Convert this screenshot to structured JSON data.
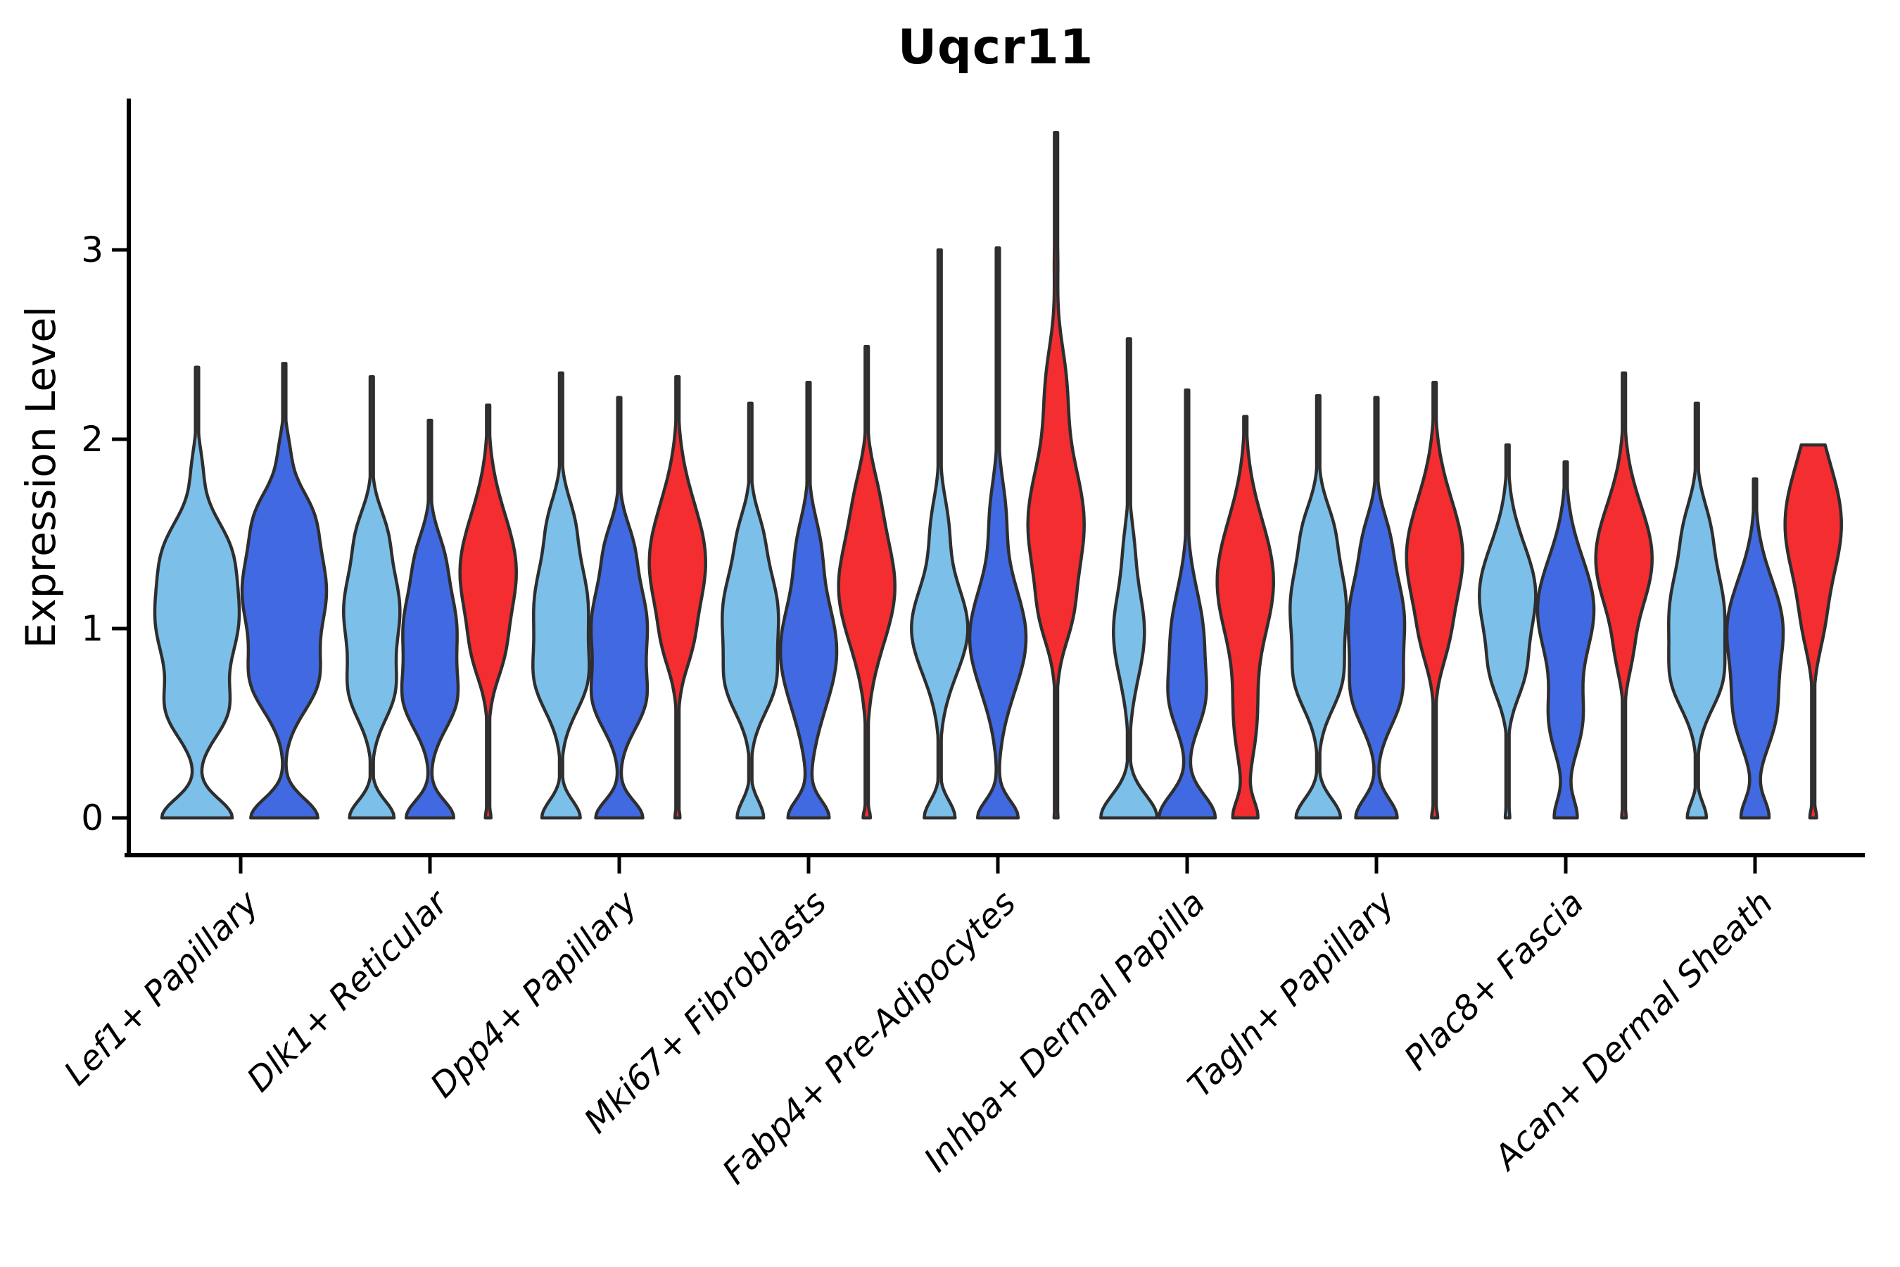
{
  "chart_data": {
    "type": "violin",
    "title": "Uqcr11",
    "ylabel": "Expression Level",
    "xlabel": "",
    "yticks": [
      0,
      1,
      2,
      3
    ],
    "ylim": [
      0,
      3.8
    ],
    "grid": false,
    "legend_position": "none",
    "palette": {
      "light_blue": "#7CC0EA",
      "dark_blue": "#4169E1",
      "red": "#F32D30"
    },
    "outline_color": "#2E2E2E",
    "categories": [
      "Lef1+ Papillary",
      "Dlk1+ Reticular",
      "Dpp4+ Papillary",
      "Mki67+ Fibroblasts",
      "Fabp4+ Pre-Adipocytes",
      "Inhba+ Dermal Papilla",
      "Tagln+ Papillary",
      "Plac8+ Fascia",
      "Acan+ Dermal Sheath"
    ],
    "groups": [
      {
        "label": "Lef1+ Papillary",
        "violins": [
          {
            "color": "light_blue",
            "max": 2.38,
            "kde": [
              [
                0,
                0.1,
                0.85
              ],
              [
                0.55,
                0.14,
                0.5
              ],
              [
                1.05,
                0.3,
                1.0
              ],
              [
                1.45,
                0.16,
                0.38
              ],
              [
                1.85,
                0.12,
                0.1
              ]
            ]
          },
          {
            "color": "dark_blue",
            "max": 2.4,
            "kde": [
              [
                0,
                0.1,
                0.8
              ],
              [
                0.7,
                0.16,
                0.55
              ],
              [
                1.2,
                0.3,
                1.0
              ],
              [
                1.62,
                0.14,
                0.32
              ],
              [
                1.95,
                0.1,
                0.08
              ]
            ]
          }
        ]
      },
      {
        "label": "Dlk1+ Reticular",
        "violins": [
          {
            "color": "light_blue",
            "max": 2.33,
            "kde": [
              [
                0,
                0.09,
                0.8
              ],
              [
                0.65,
                0.15,
                0.6
              ],
              [
                1.1,
                0.26,
                1.0
              ],
              [
                1.52,
                0.13,
                0.3
              ]
            ]
          },
          {
            "color": "dark_blue",
            "max": 2.1,
            "kde": [
              [
                0,
                0.09,
                0.9
              ],
              [
                0.6,
                0.15,
                0.72
              ],
              [
                1.0,
                0.25,
                1.0
              ],
              [
                1.4,
                0.13,
                0.28
              ]
            ]
          },
          {
            "color": "red",
            "max": 2.18,
            "kde": [
              [
                0,
                0.045,
                0.1
              ],
              [
                0.85,
                0.14,
                0.26
              ],
              [
                1.3,
                0.3,
                1.0
              ]
            ]
          }
        ]
      },
      {
        "label": "Dpp4+ Papillary",
        "violins": [
          {
            "color": "light_blue",
            "max": 2.35,
            "kde": [
              [
                0,
                0.09,
                0.72
              ],
              [
                0.7,
                0.16,
                0.65
              ],
              [
                1.12,
                0.28,
                1.0
              ],
              [
                1.58,
                0.13,
                0.26
              ]
            ]
          },
          {
            "color": "dark_blue",
            "max": 2.22,
            "kde": [
              [
                0,
                0.09,
                0.85
              ],
              [
                0.6,
                0.15,
                0.68
              ],
              [
                1.02,
                0.26,
                1.0
              ],
              [
                1.45,
                0.13,
                0.28
              ]
            ]
          },
          {
            "color": "red",
            "max": 2.33,
            "kde": [
              [
                0,
                0.045,
                0.09
              ],
              [
                0.9,
                0.13,
                0.2
              ],
              [
                1.35,
                0.31,
                1.0
              ]
            ]
          }
        ]
      },
      {
        "label": "Mki67+ Fibroblasts",
        "violins": [
          {
            "color": "light_blue",
            "max": 2.19,
            "kde": [
              [
                0,
                0.09,
                0.48
              ],
              [
                0.68,
                0.15,
                0.55
              ],
              [
                1.08,
                0.27,
                1.0
              ],
              [
                1.52,
                0.12,
                0.2
              ]
            ]
          },
          {
            "color": "dark_blue",
            "max": 2.3,
            "kde": [
              [
                0,
                0.09,
                0.72
              ],
              [
                0.88,
                0.3,
                1.0
              ],
              [
                1.45,
                0.16,
                0.28
              ]
            ]
          },
          {
            "color": "red",
            "max": 2.49,
            "kde": [
              [
                0,
                0.045,
                0.13
              ],
              [
                1.22,
                0.3,
                1.0
              ],
              [
                1.72,
                0.16,
                0.2
              ]
            ]
          }
        ]
      },
      {
        "label": "Fabp4+ Pre-Adipocytes",
        "violins": [
          {
            "color": "light_blue",
            "max": 3.0,
            "kde": [
              [
                0,
                0.09,
                0.55
              ],
              [
                1.0,
                0.24,
                1.0
              ],
              [
                1.55,
                0.16,
                0.26
              ],
              [
                2.1,
                0.14,
                0.05
              ]
            ]
          },
          {
            "color": "dark_blue",
            "max": 3.01,
            "kde": [
              [
                0,
                0.09,
                0.72
              ],
              [
                0.95,
                0.28,
                1.0
              ],
              [
                1.62,
                0.18,
                0.24
              ],
              [
                2.25,
                0.14,
                0.04
              ]
            ]
          },
          {
            "color": "red",
            "max": 3.62,
            "kde": [
              [
                0,
                0.04,
                0.07
              ],
              [
                1.05,
                0.15,
                0.26
              ],
              [
                1.55,
                0.34,
                1.0
              ],
              [
                2.3,
                0.22,
                0.3
              ],
              [
                2.95,
                0.16,
                0.06
              ]
            ]
          }
        ]
      },
      {
        "label": "Inhba+ Dermal Papilla",
        "violins": [
          {
            "color": "light_blue",
            "max": 2.53,
            "kde": [
              [
                0,
                0.12,
                1.0
              ],
              [
                0.98,
                0.24,
                0.55
              ],
              [
                1.45,
                0.14,
                0.12
              ]
            ]
          },
          {
            "color": "dark_blue",
            "max": 2.26,
            "kde": [
              [
                0,
                0.12,
                1.0
              ],
              [
                0.6,
                0.15,
                0.42
              ],
              [
                0.95,
                0.25,
                0.58
              ]
            ]
          },
          {
            "color": "red",
            "max": 2.12,
            "kde": [
              [
                0,
                0.09,
                0.42
              ],
              [
                0.5,
                0.22,
                0.35
              ],
              [
                1.25,
                0.32,
                1.0
              ]
            ]
          }
        ]
      },
      {
        "label": "Tagln+ Papillary",
        "violins": [
          {
            "color": "light_blue",
            "max": 2.23,
            "kde": [
              [
                0,
                0.1,
                0.8
              ],
              [
                0.7,
                0.15,
                0.52
              ],
              [
                1.12,
                0.28,
                1.0
              ],
              [
                1.55,
                0.13,
                0.26
              ]
            ]
          },
          {
            "color": "dark_blue",
            "max": 2.22,
            "kde": [
              [
                0,
                0.1,
                0.75
              ],
              [
                0.62,
                0.16,
                0.58
              ],
              [
                1.05,
                0.28,
                1.0
              ],
              [
                1.5,
                0.13,
                0.22
              ]
            ]
          },
          {
            "color": "red",
            "max": 2.3,
            "kde": [
              [
                0,
                0.045,
                0.11
              ],
              [
                0.92,
                0.14,
                0.2
              ],
              [
                1.38,
                0.3,
                1.0
              ]
            ]
          }
        ]
      },
      {
        "label": "Plac8+ Fascia",
        "violins": [
          {
            "color": "light_blue",
            "max": 1.97,
            "kde": [
              [
                0,
                0.05,
                0.08
              ],
              [
                0.75,
                0.14,
                0.38
              ],
              [
                1.18,
                0.26,
                1.0
              ]
            ]
          },
          {
            "color": "dark_blue",
            "max": 1.88,
            "kde": [
              [
                0,
                0.1,
                0.4
              ],
              [
                0.5,
                0.18,
                0.52
              ],
              [
                1.1,
                0.27,
                1.0
              ]
            ]
          },
          {
            "color": "red",
            "max": 2.35,
            "kde": [
              [
                0,
                0.045,
                0.08
              ],
              [
                0.85,
                0.12,
                0.14
              ],
              [
                1.37,
                0.28,
                1.0
              ]
            ]
          }
        ]
      },
      {
        "label": "Acan+ Dermal Sheath",
        "violins": [
          {
            "color": "light_blue",
            "max": 2.19,
            "kde": [
              [
                0,
                0.08,
                0.35
              ],
              [
                0.7,
                0.15,
                0.52
              ],
              [
                1.08,
                0.28,
                1.0
              ],
              [
                1.55,
                0.14,
                0.26
              ]
            ]
          },
          {
            "color": "dark_blue",
            "max": 1.79,
            "kde": [
              [
                0,
                0.1,
                0.5
              ],
              [
                0.52,
                0.18,
                0.58
              ],
              [
                1.0,
                0.26,
                1.0
              ]
            ]
          },
          {
            "color": "red",
            "max": 1.97,
            "kde": [
              [
                0,
                0.05,
                0.12
              ],
              [
                1.0,
                0.15,
                0.18
              ],
              [
                1.55,
                0.32,
                1.0
              ]
            ]
          }
        ]
      }
    ]
  }
}
